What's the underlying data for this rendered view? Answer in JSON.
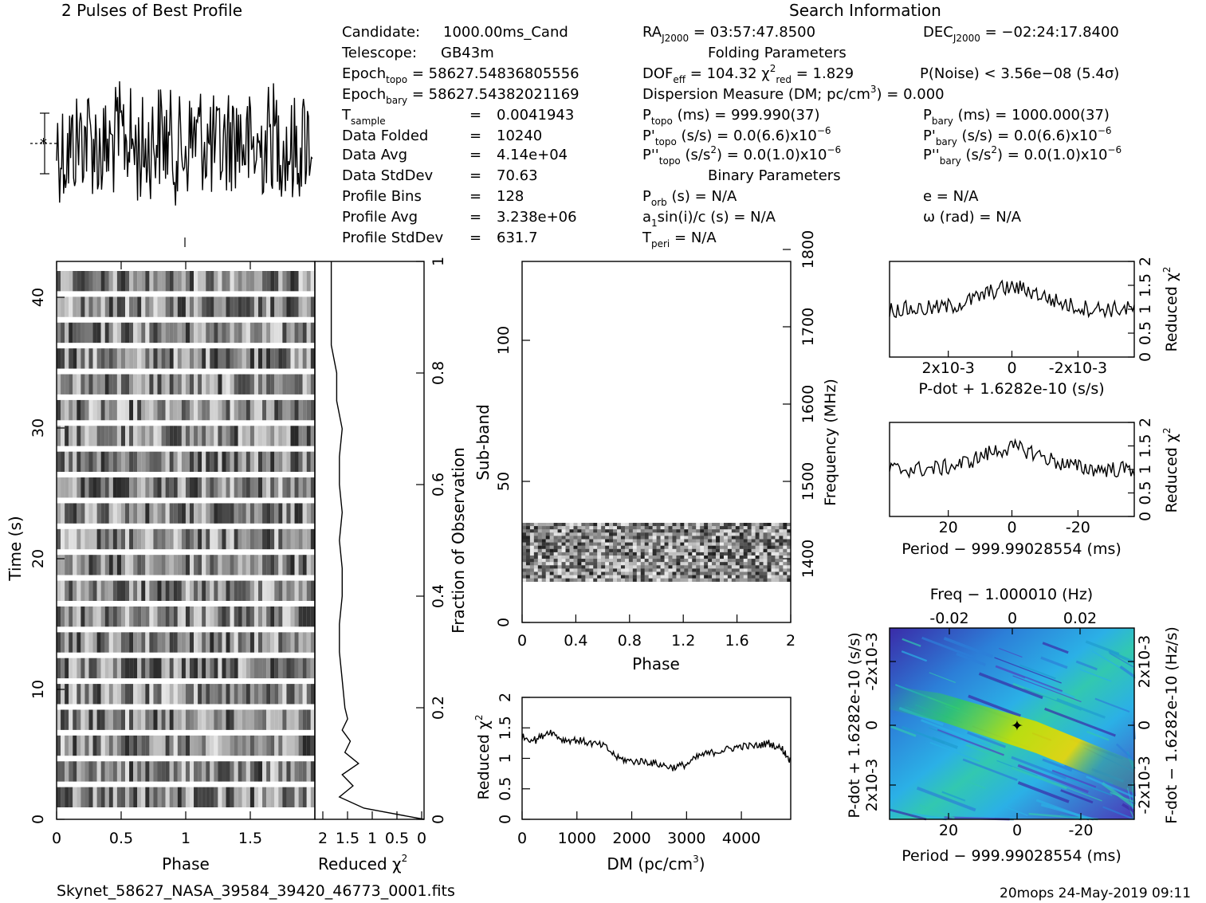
{
  "title_profile": "2 Pulses of Best Profile",
  "title_search": "Search Information",
  "filename": "Skynet_58627_NASA_39584_39420_46773_0001.fits",
  "footer_right": "20mops 24-May-2019 09:11",
  "info_left": {
    "candidate_label": "Candidate:",
    "candidate": "1000.00ms_Cand",
    "telescope_label": "Telescope:",
    "telescope": "GB43m",
    "epoch_topo": "58627.54836805556",
    "epoch_bary": "58627.54382021169",
    "t_sample": "0.0041943",
    "data_folded_label": "Data Folded",
    "data_folded": "10240",
    "data_avg_label": "Data Avg",
    "data_avg": "4.14e+04",
    "data_stddev_label": "Data StdDev",
    "data_stddev": "70.63",
    "profile_bins_label": "Profile Bins",
    "profile_bins": "128",
    "profile_avg_label": "Profile Avg",
    "profile_avg": "3.238e+06",
    "profile_stddev_label": "Profile StdDev",
    "profile_stddev": "631.7"
  },
  "info_mid": {
    "ra": "03:57:47.8500",
    "folding_header": "Folding Parameters",
    "dof_eff": "104.32",
    "chi2_red": "1.829",
    "dm": "Dispersion Measure (DM; pc/cm",
    "dm_value": ") = 0.000",
    "p_topo": "999.990(37)",
    "pd_topo": "0.0(6.6)x10",
    "pdd_topo": "0.0(1.0)x10",
    "binary_header": "Binary Parameters",
    "p_orb": "N/A",
    "a1sini": "N/A",
    "t_peri": "N/A"
  },
  "info_right": {
    "dec": "−02:24:17.8400",
    "p_noise": "P(Noise) < 3.56e−08   (5.4",
    "p_bary": "1000.000(37)",
    "pd_bary": "0.0(6.6)x10",
    "pdd_bary": "0.0(1.0)x10",
    "e": "e = N/A",
    "omega": "ω (rad) = N/A"
  },
  "labels": {
    "phase": "Phase",
    "time": "Time (s)",
    "reduced_chi2": "Reduced",
    "fraction": "Fraction of Observation",
    "subband": "Sub-band",
    "frequency": "Frequency (MHz)",
    "dm_axis": "DM (pc/cm",
    "pdot_axis": "P-dot + 1.6282e-10 (s/s)",
    "period_axis": "Period − 999.99028554 (ms)",
    "freq_axis": "Freq − 1.000010 (Hz)",
    "pdot_left": "P-dot + 1.6282e-10 (s/s)",
    "fdot_right": "F-dot − 1.6282e-10 (Hz/s)"
  },
  "colors": {
    "accent_map": "#2bb0e6",
    "map_low": "#3a2ba8",
    "map_high": "#f0d800"
  },
  "chart_data": [
    {
      "type": "line",
      "name": "profile",
      "x": [
        0,
        2
      ],
      "description_note": "",
      "y_sigma_bar": true
    },
    {
      "type": "heatmap",
      "name": "time-phase",
      "xlim": [
        0,
        2
      ],
      "ylim": [
        0,
        43
      ],
      "xticks": [
        "0",
        "0.5",
        "1",
        "1.5"
      ],
      "yticks": [
        "0",
        "10",
        "20",
        "30",
        "40"
      ]
    },
    {
      "type": "line",
      "name": "reduced-chi2-vs-time",
      "xticks": [
        "2",
        "1.5",
        "1",
        "0.5",
        "0"
      ],
      "yticks_right": [
        "0",
        "0.2",
        "0.4",
        "0.6",
        "0.8",
        "1"
      ],
      "y": [
        0.0,
        0.02,
        0.04,
        0.06,
        0.08,
        0.1,
        0.12,
        0.14,
        0.16,
        0.18,
        0.2,
        0.25,
        0.3,
        0.35,
        0.4,
        0.45,
        0.5,
        0.55,
        0.6,
        0.65,
        0.7,
        0.75,
        0.8,
        0.85,
        0.9,
        0.95,
        1.0
      ],
      "x": [
        0.0,
        1.1,
        1.55,
        1.3,
        1.5,
        1.2,
        1.45,
        1.35,
        1.5,
        1.4,
        1.45,
        1.5,
        1.55,
        1.55,
        1.5,
        1.5,
        1.55,
        1.5,
        1.55,
        1.55,
        1.5,
        1.6,
        1.6,
        1.7,
        1.7,
        1.7,
        1.7
      ]
    },
    {
      "type": "heatmap",
      "name": "subband-phase",
      "xlim": [
        0,
        2
      ],
      "ylim": [
        0,
        128
      ],
      "xticks": [
        "0",
        "0.4",
        "0.8",
        "1.2",
        "1.6",
        "2"
      ],
      "yticks": [
        "0",
        "50",
        "100"
      ],
      "freq_ticks": [
        "1400",
        "1500",
        "1600",
        "1700",
        "1800"
      ],
      "active_subbands": [
        14,
        35
      ]
    },
    {
      "type": "line",
      "name": "chi2-vs-dm",
      "xlabel": "DM (pc/cm3)",
      "ylabel": "Reduced chi2",
      "xlim": [
        0,
        4900
      ],
      "ylim": [
        0,
        2
      ],
      "xticks": [
        "0",
        "1000",
        "2000",
        "3000",
        "4000"
      ],
      "yticks": [
        "0",
        "0.5",
        "1",
        "1.5",
        "2"
      ],
      "x": [
        0,
        250,
        500,
        750,
        1000,
        1250,
        1500,
        1750,
        2000,
        2250,
        2500,
        2750,
        3000,
        3250,
        3500,
        3750,
        4000,
        4250,
        4500,
        4750,
        4900
      ],
      "y": [
        1.35,
        1.3,
        1.45,
        1.3,
        1.3,
        1.25,
        1.2,
        1.0,
        0.95,
        0.95,
        0.9,
        0.85,
        0.9,
        1.05,
        1.1,
        1.15,
        1.2,
        1.2,
        1.25,
        1.15,
        0.95
      ]
    },
    {
      "type": "line",
      "name": "chi2-vs-pdot",
      "xlabel": "P-dot + 1.6282e-10 (s/s)",
      "ylim": [
        0,
        2
      ],
      "xticks": [
        "2x10-3",
        "0",
        "-2x10-3"
      ],
      "yticks": [
        "0",
        "0.5",
        "1",
        "1.5",
        "2"
      ]
    },
    {
      "type": "line",
      "name": "chi2-vs-period",
      "xlabel": "Period - 999.99028554 (ms)",
      "ylim": [
        0,
        2
      ],
      "xticks": [
        "20",
        "0",
        "-20"
      ],
      "yticks": [
        "0",
        "0.5",
        "1",
        "1.5",
        "2"
      ]
    },
    {
      "type": "heatmap",
      "name": "p-pdot-plane",
      "xticks": [
        "20",
        "0",
        "-20"
      ],
      "top_ticks": [
        "-0.02",
        "0",
        "0.02"
      ],
      "yticks_left": [
        "-2x10-3",
        "0",
        "2x10-3"
      ],
      "yticks_right": [
        "2x10-3",
        "0",
        "-2x10-3"
      ]
    }
  ]
}
